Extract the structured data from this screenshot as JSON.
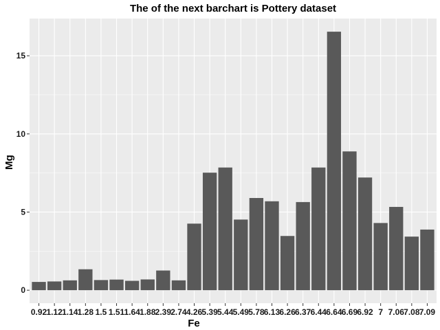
{
  "chart_data": {
    "type": "bar",
    "title": "The of the next barchart is Pottery dataset",
    "xlabel": "Fe",
    "ylabel": "Mg",
    "categories": [
      "0.92",
      "1.12",
      "1.14",
      "1.28",
      "1.5",
      "1.51",
      "1.64",
      "1.88",
      "2.39",
      "2.74",
      "4.26",
      "5.39",
      "5.44",
      "5.49",
      "5.78",
      "6.13",
      "6.26",
      "6.37",
      "6.44",
      "6.64",
      "6.69",
      "6.92",
      "7",
      "7.06",
      "7.08",
      "7.09"
    ],
    "values": [
      0.53,
      0.56,
      0.63,
      1.34,
      0.65,
      0.68,
      0.6,
      0.69,
      1.26,
      0.63,
      4.26,
      7.52,
      7.85,
      4.52,
      5.9,
      5.69,
      3.47,
      5.64,
      7.85,
      16.54,
      8.88,
      7.21,
      4.3,
      5.33,
      3.43,
      3.88
    ],
    "ylim": [
      -0.83,
      17.38
    ],
    "y_ticks": [
      0,
      5,
      10,
      15
    ],
    "grid": true,
    "colors": {
      "bar": "#595959",
      "panel": "#ebebeb",
      "grid": "#ffffff"
    }
  }
}
